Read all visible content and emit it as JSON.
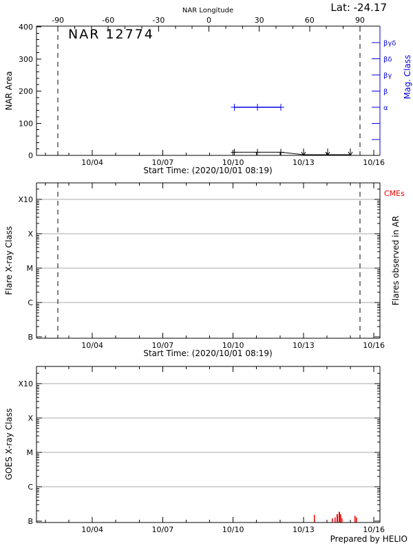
{
  "header": {
    "lat_label": "Lat: -24.17"
  },
  "footer": {
    "credit": "Prepared by HELIO"
  },
  "colors": {
    "axis": "#000000",
    "blue": "#0000dd",
    "red": "#ee0000",
    "grid": "#a9a9a9",
    "text": "#000000",
    "bg": "#ffffff"
  },
  "top_panel": {
    "title": "NAR 12774",
    "ylabel": "NAR Area",
    "top_axis_label": "NAR Longitude",
    "right_axis_label": "Mag. Class",
    "xlabel": "Start Time: (2020/10/01 08:19)"
  },
  "middle_panel": {
    "ylabel": "Flare X-ray Class",
    "right_label_top": "CMEs",
    "right_label": "Flares observed in AR",
    "xlabel": "Start Time: (2020/10/01 08:19)"
  },
  "bottom_panel": {
    "ylabel": "GOES X-ray Class"
  },
  "time_axis": {
    "start": "2020/10/01 08:19",
    "domain_days": [
      0.62,
      15.26
    ],
    "minor_step_days": 1,
    "major_ticks": [
      {
        "day": 3,
        "label": "10/04"
      },
      {
        "day": 6,
        "label": "10/07"
      },
      {
        "day": 9,
        "label": "10/10"
      },
      {
        "day": 12,
        "label": "10/13"
      },
      {
        "day": 15,
        "label": "10/16"
      }
    ]
  },
  "chart_data": [
    {
      "type": "line",
      "panel": "nar-area",
      "title": "NAR 12774",
      "ylabel": "NAR Area",
      "ylim": [
        0,
        400
      ],
      "yticks": [
        0,
        100,
        200,
        300,
        400
      ],
      "y_minor_step": 20,
      "top_axis": {
        "label": "NAR Longitude",
        "unit": "deg",
        "ticks": [
          -90,
          -60,
          -30,
          0,
          30,
          60,
          90
        ],
        "minor_step": 10,
        "day_at_0deg": 7.97,
        "deg_per_day": 13.98
      },
      "right_axis": {
        "label": "Mag. Class",
        "tick_labels": [
          "βγδ",
          "βδ",
          "βγ",
          "β",
          "α",
          "",
          ""
        ]
      },
      "limb_cross_days": [
        1.53,
        14.41
      ],
      "series": [
        {
          "name": "nar-area",
          "color_key": "axis",
          "marker": "plus",
          "points": [
            {
              "day": 9.05,
              "value": 10
            },
            {
              "day": 10.04,
              "value": 10
            },
            {
              "day": 11.03,
              "value": 10
            }
          ],
          "upper_limits": [
            {
              "day": 12.0,
              "value": 0
            },
            {
              "day": 13.03,
              "value": 0
            },
            {
              "day": 14.0,
              "value": 0
            }
          ]
        },
        {
          "name": "mag-class",
          "color_key": "blue",
          "marker": "plus",
          "y_axis": "right",
          "points": [
            {
              "day": 9.05,
              "class": "α"
            },
            {
              "day": 10.04,
              "class": "α"
            },
            {
              "day": 11.03,
              "class": "α"
            }
          ]
        }
      ]
    },
    {
      "type": "line",
      "panel": "flares-observed-in-ar",
      "ylabel": "Flare X-ray Class",
      "scale": "log",
      "yticks": [
        "B",
        "C",
        "M",
        "X",
        "X10"
      ],
      "right_label_top": "CMEs",
      "right_label": "Flares observed in AR",
      "limb_cross_days": [
        1.53,
        14.41
      ],
      "series": []
    },
    {
      "type": "bar",
      "panel": "goes-xray-flux",
      "ylabel": "GOES X-ray Class",
      "scale": "log",
      "yticks": [
        "B",
        "C",
        "M",
        "X",
        "X10"
      ],
      "series": [
        {
          "name": "goes-flares",
          "color_key": "red",
          "unit": "B-class multiple",
          "points": [
            {
              "day": 12.47,
              "b": 1.5
            },
            {
              "day": 13.23,
              "b": 1.2
            },
            {
              "day": 13.35,
              "b": 1.3
            },
            {
              "day": 13.44,
              "b": 1.6
            },
            {
              "day": 13.53,
              "b": 1.85
            },
            {
              "day": 13.58,
              "b": 1.6
            },
            {
              "day": 13.64,
              "b": 1.2
            },
            {
              "day": 14.2,
              "b": 1.45
            },
            {
              "day": 14.26,
              "b": 1.3
            }
          ]
        }
      ]
    }
  ]
}
